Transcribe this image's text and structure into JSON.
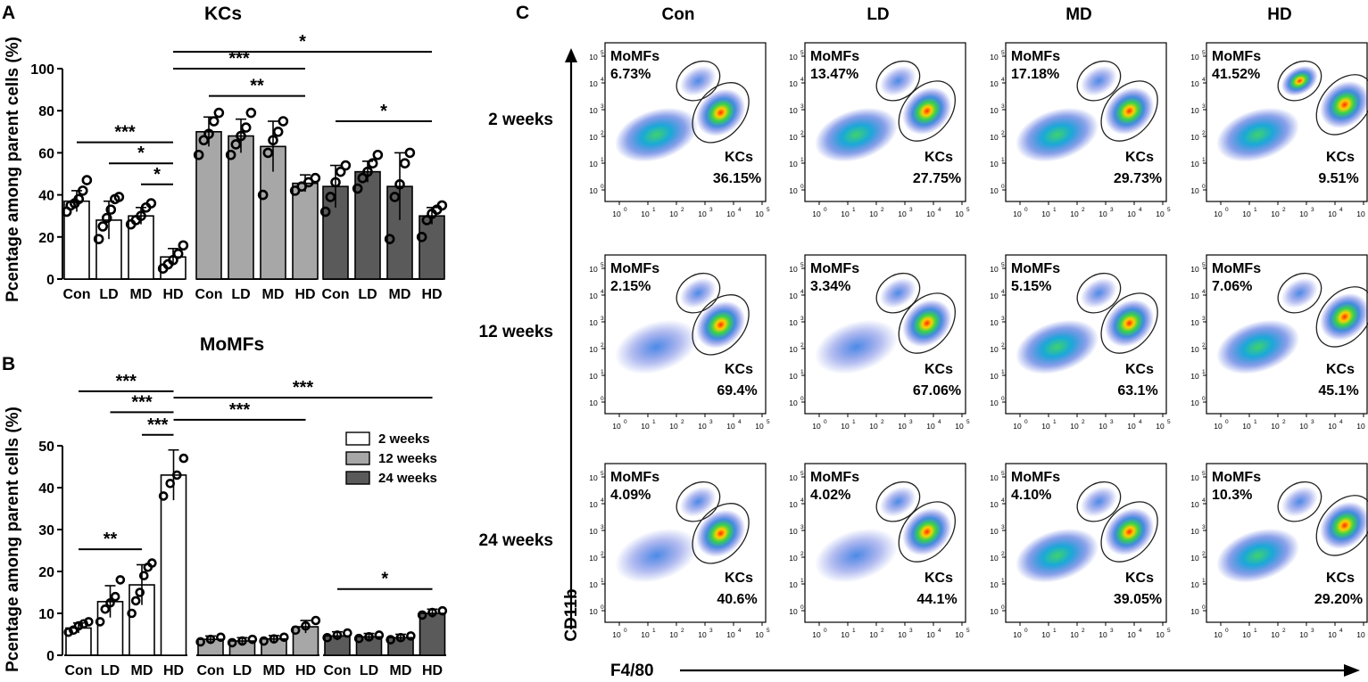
{
  "panel_labels": {
    "a": "A",
    "b": "B",
    "c": "C"
  },
  "colors": {
    "w2": "#ffffff",
    "w12": "#a7a7a7",
    "w24": "#5a5a5a",
    "ink": "#000000"
  },
  "chart_data": [
    {
      "id": "A",
      "type": "bar",
      "title": "KCs",
      "ylabel": "Pcentage among parent cells (%)",
      "ylim": [
        0,
        100
      ],
      "yticks": [
        "0",
        "20",
        "40",
        "60",
        "80",
        "100"
      ],
      "categories": [
        "Con",
        "LD",
        "MD",
        "HD"
      ],
      "series": [
        {
          "name": "2 weeks",
          "values": [
            37,
            28,
            30,
            10.5
          ],
          "errors": [
            5,
            9,
            4,
            4
          ],
          "points": [
            [
              32,
              35,
              36,
              38,
              42,
              47
            ],
            [
              19,
              25,
              29,
              33,
              38,
              39
            ],
            [
              26,
              28,
              30,
              34,
              36
            ],
            [
              5,
              7,
              9,
              12,
              16
            ]
          ]
        },
        {
          "name": "12 weeks",
          "values": [
            70,
            68,
            63,
            45.5
          ],
          "errors": [
            7,
            8,
            12,
            4
          ],
          "points": [
            [
              59,
              66,
              69,
              75,
              79
            ],
            [
              59,
              64,
              68,
              72,
              79
            ],
            [
              40,
              60,
              66,
              70,
              75
            ],
            [
              42,
              44,
              46,
              48
            ]
          ]
        },
        {
          "name": "24 weeks",
          "values": [
            44,
            51,
            44,
            30
          ],
          "errors": [
            10,
            5,
            16,
            4
          ],
          "points": [
            [
              32,
              39,
              46,
              51,
              54
            ],
            [
              43,
              48,
              51,
              55,
              59
            ],
            [
              19,
              39,
              45,
              55,
              60
            ],
            [
              20,
              28,
              31,
              33,
              35
            ]
          ]
        }
      ],
      "significance": [
        {
          "label": "*",
          "from": [
            0,
            3
          ],
          "to": [
            2,
            3
          ],
          "y": 108
        },
        {
          "label": "***",
          "from": [
            0,
            3
          ],
          "to": [
            1,
            3
          ],
          "y": 100
        },
        {
          "label": "**",
          "from": [
            1,
            0
          ],
          "to": [
            1,
            3
          ],
          "y": 87
        },
        {
          "label": "*",
          "from": [
            2,
            0
          ],
          "to": [
            2,
            3
          ],
          "y": 75
        },
        {
          "label": "***",
          "from": [
            0,
            0
          ],
          "to": [
            0,
            3
          ],
          "y": 65
        },
        {
          "label": "*",
          "from": [
            0,
            1
          ],
          "to": [
            0,
            3
          ],
          "y": 55
        },
        {
          "label": "*",
          "from": [
            0,
            2
          ],
          "to": [
            0,
            3
          ],
          "y": 45
        }
      ]
    },
    {
      "id": "B",
      "type": "bar",
      "title": "MoMFs",
      "ylabel": "Pcentage among parent cells (%)",
      "ylim": [
        0,
        50
      ],
      "yticks": [
        "0",
        "10",
        "20",
        "30",
        "40",
        "50"
      ],
      "categories": [
        "Con",
        "LD",
        "MD",
        "HD"
      ],
      "legend": [
        "2 weeks",
        "12 weeks",
        "24 weeks"
      ],
      "series": [
        {
          "name": "2 weeks",
          "values": [
            6.5,
            12.8,
            16.8,
            43
          ],
          "errors": [
            1.2,
            3.8,
            4.8,
            6
          ],
          "points": [
            [
              5.5,
              6,
              7,
              7.5,
              8
            ],
            [
              8,
              11,
              12.5,
              14,
              18
            ],
            [
              10,
              13,
              15,
              19,
              21,
              22
            ],
            [
              38,
              41,
              43,
              47
            ]
          ]
        },
        {
          "name": "12 weeks",
          "values": [
            3.8,
            3.4,
            3.9,
            6.8
          ],
          "errors": [
            0.8,
            0.8,
            0.8,
            1.5
          ],
          "points": [
            [
              3.2,
              3.8,
              4.3
            ],
            [
              3,
              3.4,
              3.8
            ],
            [
              3.4,
              3.9,
              4.3
            ],
            [
              6,
              7,
              8.3
            ]
          ]
        },
        {
          "name": "24 weeks",
          "values": [
            4.6,
            4.4,
            4.2,
            10
          ],
          "errors": [
            1,
            0.8,
            0.8,
            1
          ],
          "points": [
            [
              4.2,
              4.8,
              5.3
            ],
            [
              4,
              4.4,
              4.8
            ],
            [
              3.7,
              4.2,
              4.6
            ],
            [
              9.6,
              10.2,
              10.6
            ]
          ]
        }
      ],
      "significance": [
        {
          "label": "***",
          "from": [
            0,
            0
          ],
          "to": [
            0,
            3
          ],
          "y": 63
        },
        {
          "label": "***",
          "from": [
            0,
            1
          ],
          "to": [
            0,
            3
          ],
          "y": 58
        },
        {
          "label": "***",
          "from": [
            0,
            3
          ],
          "to": [
            2,
            3
          ],
          "y": 61.5
        },
        {
          "label": "***",
          "from": [
            0,
            3
          ],
          "to": [
            1,
            3
          ],
          "y": 56.2
        },
        {
          "label": "***",
          "from": [
            0,
            2
          ],
          "to": [
            0,
            3
          ],
          "y": 52.6
        },
        {
          "label": "**",
          "from": [
            0,
            0
          ],
          "to": [
            0,
            2
          ],
          "y": 25.3
        },
        {
          "label": "*",
          "from": [
            2,
            0
          ],
          "to": [
            2,
            3
          ],
          "y": 15.8
        }
      ]
    }
  ],
  "flow": {
    "columns": [
      "Con",
      "LD",
      "MD",
      "HD"
    ],
    "rows": [
      "2 weeks",
      "12 weeks",
      "24 weeks"
    ],
    "y_axis_label": "CD11b",
    "x_axis_label": "F4/80",
    "gate_momfs": "MoMFs",
    "gate_kcs": "KCs",
    "axis_base": "10",
    "axis_exponents": [
      "0",
      "1",
      "2",
      "3",
      "4",
      "5"
    ],
    "momfs": [
      [
        "6.73%",
        "13.47%",
        "17.18%",
        "41.52%"
      ],
      [
        "2.15%",
        "3.34%",
        "5.15%",
        "7.06%"
      ],
      [
        "4.09%",
        "4.02%",
        "4.10%",
        "10.3%"
      ]
    ],
    "kcs": [
      [
        "36.15%",
        "27.75%",
        "29.73%",
        "9.51%"
      ],
      [
        "69.4%",
        "67.06%",
        "63.1%",
        "45.1%"
      ],
      [
        "40.6%",
        "44.1%",
        "39.05%",
        "29.20%"
      ]
    ]
  }
}
